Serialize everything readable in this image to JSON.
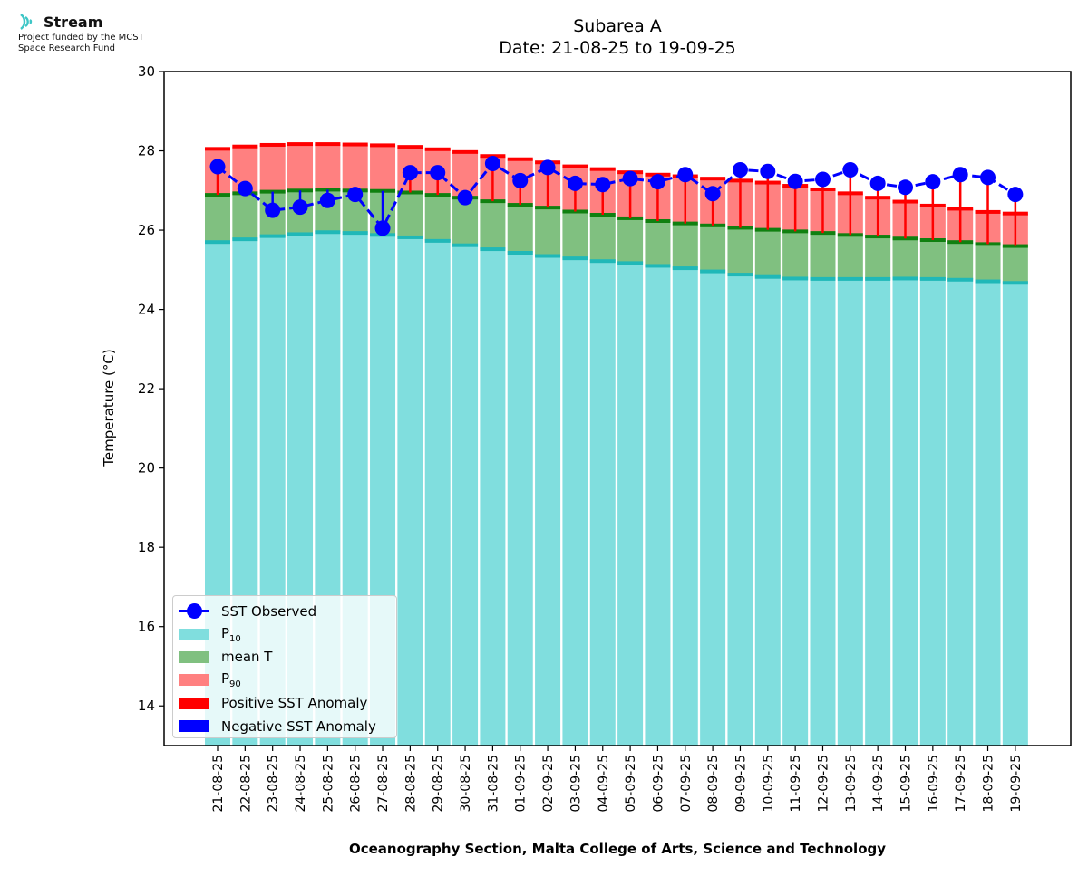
{
  "logo": {
    "name": "Stream",
    "line1": "Project funded by the MCST",
    "line2": "Space Research Fund",
    "color": "#3ec6c6",
    "icon": "wifi-signal-icon"
  },
  "chart_data": {
    "type": "bar",
    "title": "Subarea A",
    "subtitle": "Date: 21-08-25 to 19-09-25",
    "xlabel": "Oceanography Section, Malta College of Arts, Science and Technology",
    "ylabel": "Temperature (°C)",
    "ylim": [
      13,
      30
    ],
    "yticks": [
      14,
      16,
      18,
      20,
      22,
      24,
      26,
      28,
      30
    ],
    "grid": false,
    "legend_position": "lower-left",
    "categories": [
      "21-08-25",
      "22-08-25",
      "23-08-25",
      "24-08-25",
      "25-08-25",
      "26-08-25",
      "27-08-25",
      "28-08-25",
      "29-08-25",
      "30-08-25",
      "31-08-25",
      "01-09-25",
      "02-09-25",
      "03-09-25",
      "04-09-25",
      "05-09-25",
      "06-09-25",
      "07-09-25",
      "08-09-25",
      "09-09-25",
      "10-09-25",
      "11-09-25",
      "12-09-25",
      "13-09-25",
      "14-09-25",
      "15-09-25",
      "16-09-25",
      "17-09-25",
      "18-09-25",
      "19-09-25"
    ],
    "series": [
      {
        "name": "P",
        "name_sub": "10",
        "color": "#80dede",
        "values": [
          25.7,
          25.77,
          25.85,
          25.9,
          25.95,
          25.93,
          25.88,
          25.82,
          25.73,
          25.62,
          25.52,
          25.43,
          25.35,
          25.29,
          25.22,
          25.17,
          25.1,
          25.04,
          24.96,
          24.88,
          24.82,
          24.78,
          24.77,
          24.77,
          24.77,
          24.78,
          24.77,
          24.75,
          24.71,
          24.67
        ]
      },
      {
        "name": "mean T",
        "color": "#80c080",
        "values": [
          26.89,
          26.93,
          26.97,
          27.0,
          27.02,
          27.0,
          26.99,
          26.95,
          26.89,
          26.82,
          26.73,
          26.64,
          26.57,
          26.47,
          26.39,
          26.3,
          26.23,
          26.17,
          26.12,
          26.06,
          26.01,
          25.97,
          25.93,
          25.88,
          25.84,
          25.79,
          25.75,
          25.7,
          25.65,
          25.6
        ]
      },
      {
        "name": "P",
        "name_sub": "90",
        "color": "#ff8080",
        "values": [
          28.05,
          28.11,
          28.15,
          28.17,
          28.17,
          28.16,
          28.14,
          28.1,
          28.04,
          27.97,
          27.87,
          27.79,
          27.71,
          27.61,
          27.54,
          27.46,
          27.4,
          27.36,
          27.3,
          27.25,
          27.2,
          27.12,
          27.03,
          26.93,
          26.82,
          26.72,
          26.62,
          26.54,
          26.46,
          26.42
        ]
      },
      {
        "name": "SST Observed",
        "color": "#0000ff",
        "values": [
          27.6,
          27.05,
          26.5,
          26.58,
          26.75,
          26.9,
          26.05,
          27.45,
          27.45,
          26.82,
          27.68,
          27.25,
          27.58,
          27.18,
          27.15,
          27.3,
          27.22,
          27.4,
          26.92,
          27.52,
          27.48,
          27.23,
          27.28,
          27.52,
          27.18,
          27.08,
          27.22,
          27.4,
          27.33,
          26.9
        ]
      }
    ],
    "legend_entries": [
      {
        "label": "Positive SST Anomaly",
        "color": "#ff0000"
      },
      {
        "label": "Negative SST Anomaly",
        "color": "#0000ff"
      }
    ]
  }
}
